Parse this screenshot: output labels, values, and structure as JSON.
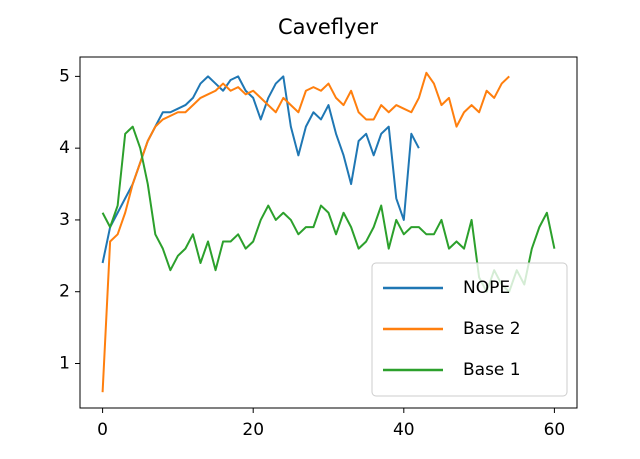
{
  "chart_data": {
    "type": "line",
    "title": "Caveflyer",
    "xlim": [
      -3,
      63
    ],
    "ylim": [
      0.38,
      5.27
    ],
    "xticks": [
      0,
      20,
      40,
      60
    ],
    "yticks": [
      1,
      2,
      3,
      4,
      5
    ],
    "legend": "lower right",
    "series": [
      {
        "name": "NOPE",
        "color": "#1f77b4",
        "x": [
          0,
          1,
          2,
          3,
          4,
          5,
          6,
          7,
          8,
          9,
          10,
          11,
          12,
          13,
          14,
          15,
          16,
          17,
          18,
          19,
          20,
          21,
          22,
          23,
          24,
          25,
          26,
          27,
          28,
          29,
          30,
          31,
          32,
          33,
          34,
          35,
          36,
          37,
          38,
          39,
          40,
          41,
          42
        ],
        "values": [
          2.4,
          2.9,
          3.1,
          3.3,
          3.5,
          3.8,
          4.1,
          4.3,
          4.5,
          4.5,
          4.55,
          4.6,
          4.7,
          4.9,
          5.0,
          4.9,
          4.8,
          4.95,
          5.0,
          4.8,
          4.7,
          4.4,
          4.7,
          4.9,
          5.0,
          4.3,
          3.9,
          4.3,
          4.5,
          4.4,
          4.6,
          4.2,
          3.9,
          3.5,
          4.1,
          4.2,
          3.9,
          4.2,
          4.3,
          3.3,
          3.0,
          4.2,
          4.0
        ]
      },
      {
        "name": "Base 2",
        "color": "#ff7f0e",
        "x": [
          0,
          1,
          2,
          3,
          4,
          5,
          6,
          7,
          8,
          9,
          10,
          11,
          12,
          13,
          14,
          15,
          16,
          17,
          18,
          19,
          20,
          21,
          22,
          23,
          24,
          25,
          26,
          27,
          28,
          29,
          30,
          31,
          32,
          33,
          34,
          35,
          36,
          37,
          38,
          39,
          40,
          41,
          42,
          43,
          44,
          45,
          46,
          47,
          48,
          49,
          50,
          51,
          52,
          53,
          54
        ],
        "values": [
          0.6,
          2.7,
          2.8,
          3.1,
          3.5,
          3.8,
          4.1,
          4.3,
          4.4,
          4.45,
          4.5,
          4.5,
          4.6,
          4.7,
          4.75,
          4.8,
          4.9,
          4.8,
          4.85,
          4.75,
          4.8,
          4.7,
          4.6,
          4.5,
          4.7,
          4.6,
          4.5,
          4.8,
          4.85,
          4.8,
          4.9,
          4.7,
          4.6,
          4.8,
          4.5,
          4.4,
          4.4,
          4.6,
          4.5,
          4.6,
          4.55,
          4.5,
          4.7,
          5.05,
          4.9,
          4.6,
          4.7,
          4.3,
          4.5,
          4.6,
          4.5,
          4.8,
          4.7,
          4.9,
          5.0
        ]
      },
      {
        "name": "Base 1",
        "color": "#2ca02c",
        "x": [
          0,
          1,
          2,
          3,
          4,
          5,
          6,
          7,
          8,
          9,
          10,
          11,
          12,
          13,
          14,
          15,
          16,
          17,
          18,
          19,
          20,
          21,
          22,
          23,
          24,
          25,
          26,
          27,
          28,
          29,
          30,
          31,
          32,
          33,
          34,
          35,
          36,
          37,
          38,
          39,
          40,
          41,
          42,
          43,
          44,
          45,
          46,
          47,
          48,
          49,
          50,
          51,
          52,
          53,
          54,
          55,
          56,
          57,
          58,
          59,
          60
        ],
        "values": [
          3.1,
          2.9,
          3.2,
          4.2,
          4.3,
          4.0,
          3.5,
          2.8,
          2.6,
          2.3,
          2.5,
          2.6,
          2.8,
          2.4,
          2.7,
          2.3,
          2.7,
          2.7,
          2.8,
          2.6,
          2.7,
          3.0,
          3.2,
          3.0,
          3.1,
          3.0,
          2.8,
          2.9,
          2.9,
          3.2,
          3.1,
          2.8,
          3.1,
          2.9,
          2.6,
          2.7,
          2.9,
          3.2,
          2.6,
          3.0,
          2.8,
          2.9,
          2.9,
          2.8,
          2.8,
          3.0,
          2.6,
          2.7,
          2.6,
          3.0,
          2.2,
          2.0,
          2.3,
          2.1,
          2.0,
          2.3,
          2.1,
          2.6,
          2.9,
          3.1,
          2.6
        ]
      }
    ]
  }
}
